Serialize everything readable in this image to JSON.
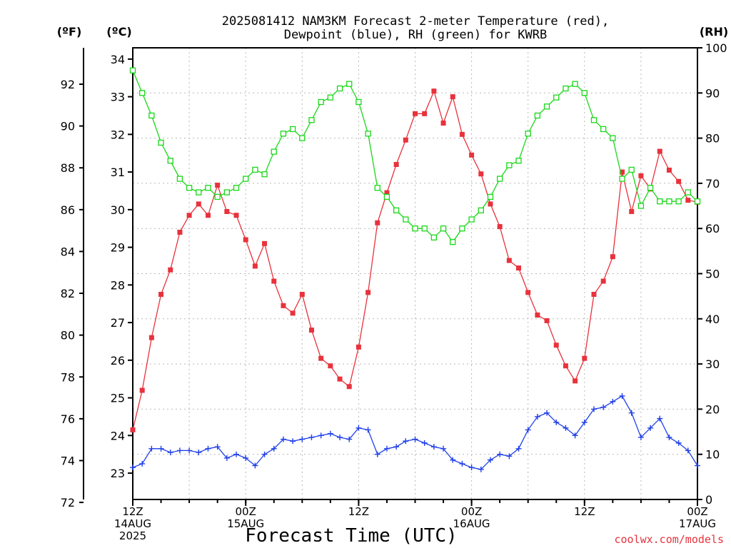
{
  "chart_data": {
    "type": "line",
    "title_line1": "2025081412 NAM3KM Forecast 2-meter Temperature (red),",
    "title_line2": "Dewpoint (blue), RH (green) for KWRB",
    "left_unit_f": "(ºF)",
    "left_unit_c": "(ºC)",
    "right_unit": "(RH)",
    "xlabel": "Forecast Time (UTC)",
    "credit": "coolwx.com/models",
    "ylim_c": [
      22.3,
      34.3
    ],
    "ylim_rh": [
      0,
      100
    ],
    "yticks_c": [
      23,
      24,
      25,
      26,
      27,
      28,
      29,
      30,
      31,
      32,
      33,
      34
    ],
    "yticks_f": [
      72,
      74,
      76,
      78,
      80,
      82,
      84,
      86,
      88,
      90,
      92
    ],
    "yticks_rh": [
      0,
      10,
      20,
      30,
      40,
      50,
      60,
      70,
      80,
      90,
      100
    ],
    "x_range_hours": [
      0,
      60
    ],
    "x_ticks": [
      {
        "hour": 0,
        "lines": [
          "12Z",
          "14AUG",
          "2025"
        ]
      },
      {
        "hour": 12,
        "lines": [
          "00Z",
          "15AUG"
        ]
      },
      {
        "hour": 24,
        "lines": [
          "12Z"
        ]
      },
      {
        "hour": 36,
        "lines": [
          "00Z",
          "16AUG"
        ]
      },
      {
        "hour": 48,
        "lines": [
          "12Z"
        ]
      },
      {
        "hour": 60,
        "lines": [
          "00Z",
          "17AUG"
        ]
      }
    ],
    "series": [
      {
        "name": "Temperature",
        "color": "#e8323c",
        "axis": "C",
        "marker": "filled-square",
        "values": [
          24.15,
          25.2,
          26.6,
          27.75,
          28.4,
          29.4,
          29.85,
          30.15,
          29.85,
          30.65,
          29.95,
          29.85,
          29.2,
          28.5,
          29.1,
          28.1,
          27.45,
          27.25,
          27.75,
          26.8,
          26.05,
          25.85,
          25.5,
          25.3,
          26.35,
          27.8,
          29.65,
          30.45,
          31.2,
          31.85,
          32.55,
          32.55,
          33.15,
          32.3,
          33.0,
          32.0,
          31.45,
          30.95,
          30.15,
          29.55,
          28.65,
          28.45,
          27.8,
          27.2,
          27.05,
          26.4,
          25.85,
          25.45,
          26.05,
          27.75,
          28.1,
          28.75,
          31.0,
          29.95,
          30.9,
          30.55,
          31.55,
          31.05,
          30.75,
          30.25,
          30.2
        ]
      },
      {
        "name": "Dewpoint",
        "color": "#2040e8",
        "axis": "C",
        "marker": "plus",
        "values": [
          23.15,
          23.25,
          23.65,
          23.65,
          23.55,
          23.6,
          23.6,
          23.55,
          23.65,
          23.7,
          23.4,
          23.5,
          23.4,
          23.2,
          23.5,
          23.65,
          23.9,
          23.85,
          23.9,
          23.95,
          24.0,
          24.05,
          23.95,
          23.9,
          24.2,
          24.15,
          23.5,
          23.65,
          23.7,
          23.85,
          23.9,
          23.8,
          23.7,
          23.65,
          23.35,
          23.25,
          23.15,
          23.1,
          23.35,
          23.5,
          23.45,
          23.65,
          24.15,
          24.5,
          24.6,
          24.35,
          24.2,
          24.0,
          24.35,
          24.7,
          24.75,
          24.9,
          25.05,
          24.6,
          23.95,
          24.2,
          24.45,
          23.95,
          23.8,
          23.6,
          23.2
        ]
      },
      {
        "name": "RH",
        "color": "#18d818",
        "axis": "RH",
        "marker": "open-square",
        "values": [
          95,
          90,
          85,
          79,
          75,
          71,
          69,
          68,
          69,
          67,
          68,
          69,
          71,
          73,
          72,
          77,
          81,
          82,
          80,
          84,
          88,
          89,
          91,
          92,
          88,
          81,
          69,
          67,
          64,
          62,
          60,
          60,
          58,
          60,
          57,
          60,
          62,
          64,
          67,
          71,
          74,
          75,
          81,
          85,
          87,
          89,
          91,
          92,
          90,
          84,
          82,
          80,
          71,
          73,
          65,
          69,
          66,
          66,
          66,
          68,
          66
        ]
      }
    ]
  }
}
